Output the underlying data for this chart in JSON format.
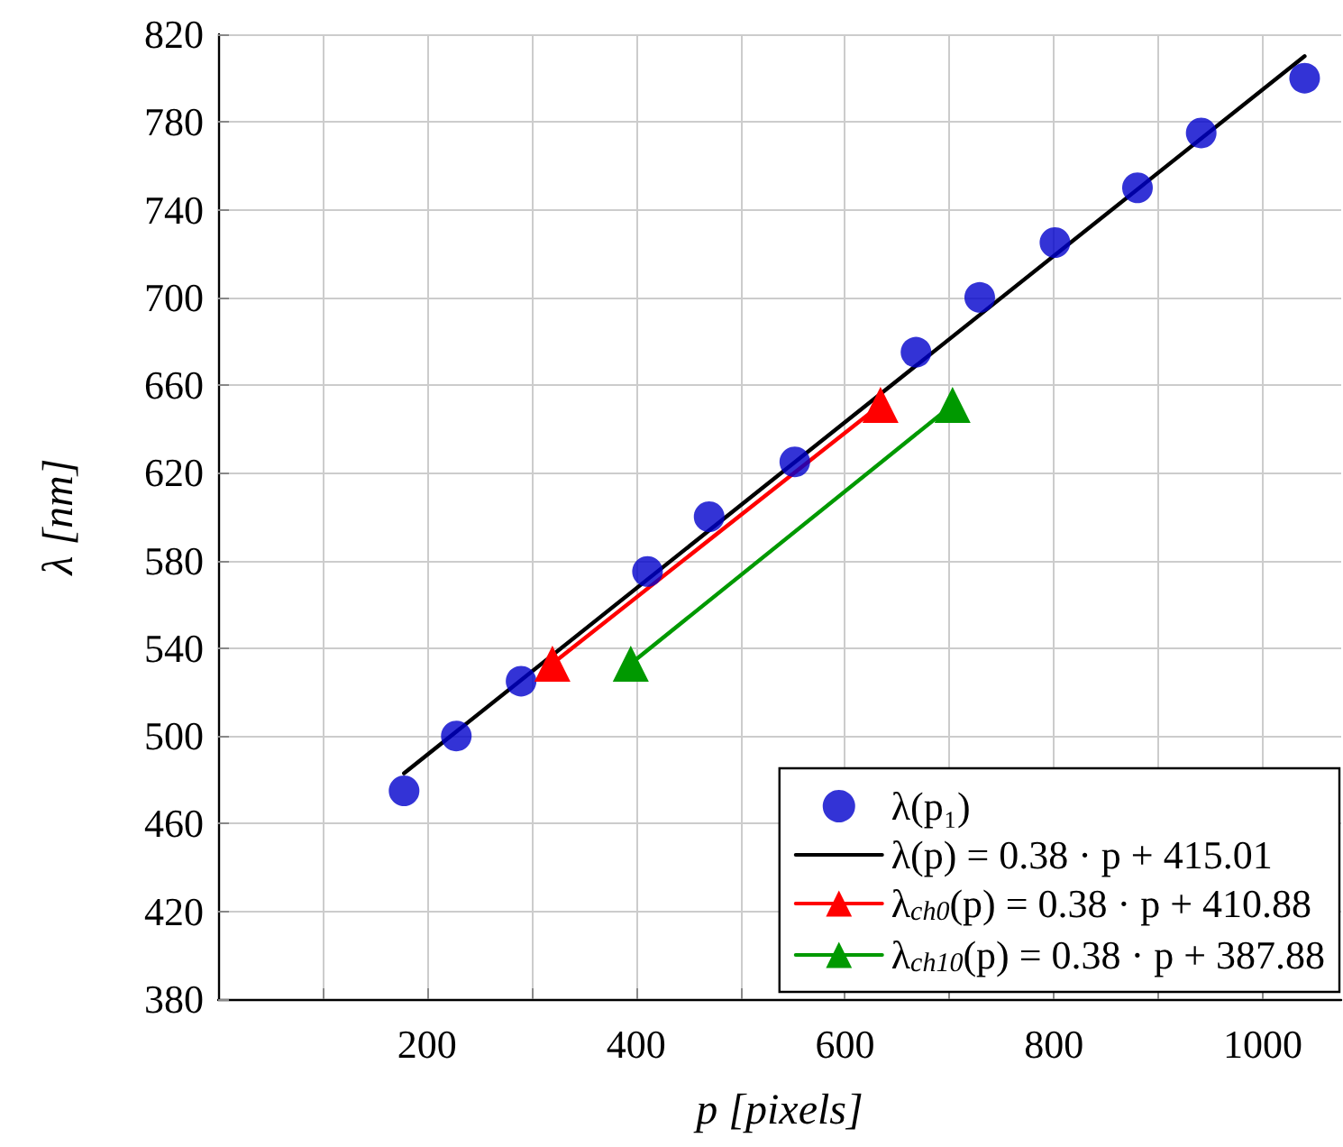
{
  "chart_data": {
    "type": "line",
    "xlabel": "p [pixels]",
    "ylabel": "λ [nm]",
    "xlim": [
      0,
      1075
    ],
    "xticks": [
      {
        "value": 100,
        "label": null
      },
      200,
      {
        "value": 300,
        "label": null
      },
      400,
      {
        "value": 500,
        "label": null
      },
      600,
      {
        "value": 700,
        "label": null
      },
      800,
      {
        "value": 900,
        "label": null
      },
      1000
    ],
    "ylim": [
      380,
      820
    ],
    "yticks": [
      380,
      420,
      460,
      500,
      540,
      580,
      620,
      660,
      700,
      740,
      780,
      820
    ],
    "grid": true,
    "legend": "bottom right",
    "series": [
      {
        "name": "λ(p₁)",
        "type": "scatter",
        "marker": "circle",
        "color": "#0000cc",
        "x": [
          178,
          228,
          290,
          411,
          470,
          552,
          668,
          729,
          801,
          880,
          941,
          1040
        ],
        "values": [
          475,
          500,
          525,
          575,
          600,
          625,
          675,
          700,
          725,
          750,
          775,
          800
        ]
      },
      {
        "name": "λ(p) = 0.38 · p + 415.01",
        "marker": "none",
        "color": "#000000",
        "x": [
          178,
          1040
        ],
        "values": [
          483,
          810
        ]
      },
      {
        "name": "λ$_{ch0}$(p) = 0.38 · p + 410.88",
        "marker": "triangle",
        "color": "#ff0000",
        "x": [
          320,
          634
        ],
        "values": [
          533,
          651
        ]
      },
      {
        "name": "λ$_{ch10}$(p) = 0.38 · p + 387.88",
        "marker": "triangle",
        "color": "#009900",
        "x": [
          395,
          703
        ],
        "values": [
          533,
          651
        ]
      }
    ]
  }
}
